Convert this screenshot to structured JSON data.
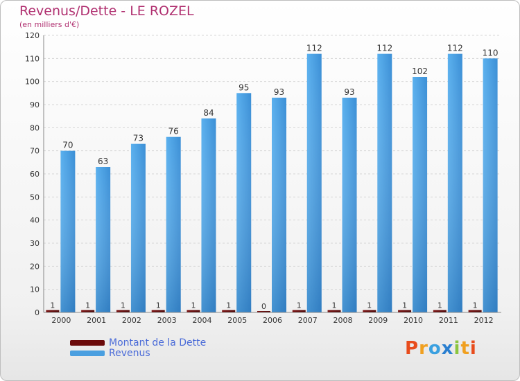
{
  "chart_data": {
    "type": "bar",
    "title": "Revenus/Dette - LE ROZEL",
    "subtitle": "(en milliers d'€)",
    "categories": [
      "2000",
      "2001",
      "2002",
      "2003",
      "2004",
      "2005",
      "2006",
      "2007",
      "2008",
      "2009",
      "2010",
      "2011",
      "2012"
    ],
    "series": [
      {
        "name": "Montant de la Dette",
        "values": [
          1,
          1,
          1,
          1,
          1,
          1,
          0,
          1,
          1,
          1,
          1,
          1,
          1
        ],
        "color": "#6b0a0a"
      },
      {
        "name": "Revenus",
        "values": [
          70,
          63,
          73,
          76,
          84,
          95,
          93,
          112,
          93,
          112,
          102,
          112,
          110
        ],
        "color": "#4a9fe0"
      }
    ],
    "ylim": [
      0,
      120
    ],
    "yticks": [
      0,
      10,
      20,
      30,
      40,
      50,
      60,
      70,
      80,
      90,
      100,
      110,
      120
    ],
    "grid": true,
    "legend_position": "bottom-left"
  },
  "logo": {
    "letters": [
      {
        "ch": "P",
        "color": "#e84c1c"
      },
      {
        "ch": "r",
        "color": "#f0a020"
      },
      {
        "ch": "o",
        "color": "#3aa0e0"
      },
      {
        "ch": "x",
        "color": "#2a7fd0"
      },
      {
        "ch": "i",
        "color": "#8bc53f"
      },
      {
        "ch": "t",
        "color": "#f0a020"
      },
      {
        "ch": "i",
        "color": "#e84c1c"
      }
    ]
  }
}
